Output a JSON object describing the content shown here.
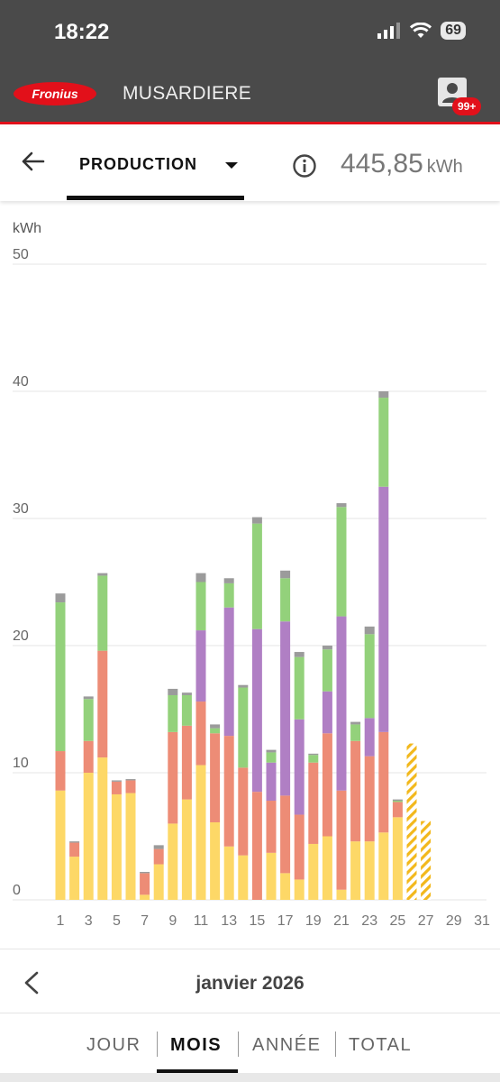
{
  "status": {
    "time": "18:22",
    "battery": "69"
  },
  "app": {
    "logo_text": "Fronius",
    "site_name": "MUSARDIERE",
    "notifications_badge": "99+"
  },
  "subheader": {
    "selector_label": "PRODUCTION",
    "total_value": "445,85",
    "total_unit": "kWh"
  },
  "month_nav": {
    "label": "janvier 2026"
  },
  "tabs": [
    "JOUR",
    "MOIS",
    "ANNÉE",
    "TOTAL"
  ],
  "active_tab": "MOIS",
  "colors": {
    "accent": "#e2101a",
    "yellow": "#fdd867",
    "salmon": "#ed8c76",
    "purple": "#b07fc4",
    "green": "#93d17b",
    "gray": "#9b9b9b",
    "forecast": "#f2b81c"
  },
  "chart_data": {
    "type": "bar",
    "stacked": true,
    "ylabel": "kWh",
    "ylim": [
      0,
      50
    ],
    "yticks": [
      0,
      10,
      20,
      30,
      40,
      50
    ],
    "xticks": [
      1,
      3,
      5,
      7,
      9,
      11,
      13,
      15,
      17,
      19,
      21,
      23,
      25,
      27,
      29,
      31
    ],
    "x": [
      1,
      2,
      3,
      4,
      5,
      6,
      7,
      8,
      9,
      10,
      11,
      12,
      13,
      14,
      15,
      16,
      17,
      18,
      19,
      20,
      21,
      22,
      23,
      24,
      25
    ],
    "series": [
      {
        "color": "yellow",
        "values": [
          8.6,
          3.4,
          10.0,
          11.2,
          8.3,
          8.4,
          0.4,
          2.8,
          6.0,
          7.9,
          10.6,
          6.1,
          4.2,
          3.5,
          0,
          3.7,
          2.1,
          1.6,
          4.4,
          5.0,
          0.8,
          4.6,
          4.6,
          5.3,
          6.5
        ]
      },
      {
        "color": "salmon",
        "values": [
          3.1,
          1.1,
          2.5,
          8.4,
          1.0,
          1.0,
          1.7,
          1.2,
          7.2,
          5.8,
          5.0,
          7.0,
          8.7,
          6.9,
          8.5,
          4.1,
          6.1,
          5.1,
          6.4,
          8.1,
          7.8,
          7.9,
          6.7,
          7.9,
          1.2
        ]
      },
      {
        "color": "purple",
        "values": [
          0,
          0,
          0,
          0,
          0,
          0,
          0,
          0,
          0,
          0,
          5.6,
          0,
          10.1,
          0,
          12.8,
          3.0,
          13.7,
          7.5,
          0,
          3.3,
          13.7,
          0,
          3.0,
          19.3,
          0
        ]
      },
      {
        "color": "green",
        "values": [
          11.7,
          0,
          3.3,
          5.9,
          0,
          0,
          0,
          0,
          2.9,
          2.4,
          3.8,
          0.4,
          1.9,
          6.3,
          8.3,
          0.8,
          3.4,
          4.9,
          0.6,
          3.3,
          8.6,
          1.3,
          6.6,
          7.0,
          0.1
        ]
      },
      {
        "color": "gray",
        "values": [
          0.7,
          0.1,
          0.2,
          0.2,
          0.1,
          0.1,
          0.1,
          0.3,
          0.5,
          0.2,
          0.7,
          0.3,
          0.4,
          0.2,
          0.5,
          0.2,
          0.6,
          0.4,
          0.1,
          0.3,
          0.3,
          0.2,
          0.6,
          0.5,
          0.1
        ]
      }
    ],
    "forecast": [
      {
        "x": 26,
        "value": 12.3
      },
      {
        "x": 27,
        "value": 6.2
      }
    ],
    "grid": true
  }
}
